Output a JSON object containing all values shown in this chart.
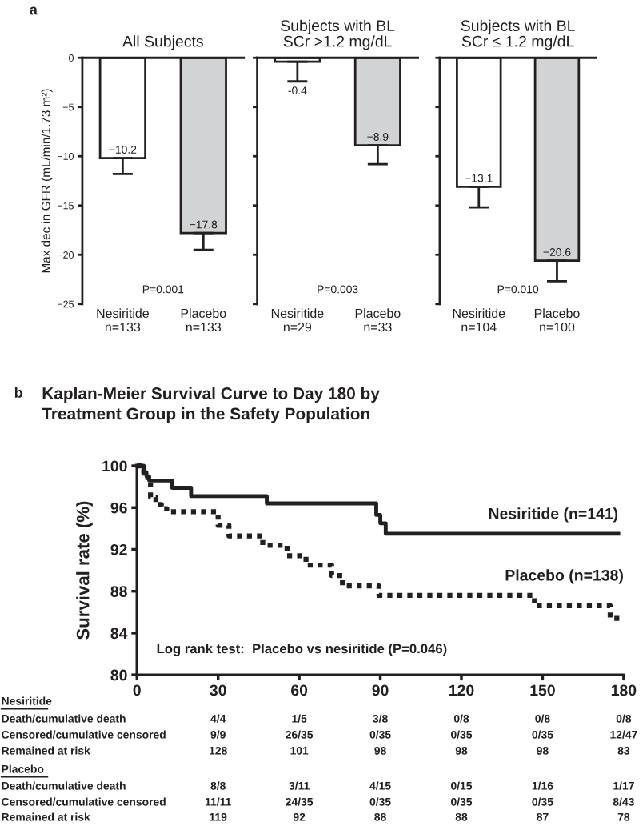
{
  "chart_data": [
    {
      "type": "bar",
      "title": "All Subjects",
      "ylabel": "Max dec in GFR (mL/min/1.73 m²)",
      "categories": [
        "Nesiritide\nn=133",
        "Placebo\nn=133"
      ],
      "values": [
        -10.2,
        -17.8
      ],
      "colors": [
        "#ffffff",
        "#d2d3d5"
      ],
      "errors": [
        [
          -11.8,
          -10.2
        ],
        [
          -19.5,
          -17.8
        ]
      ],
      "value_labels": [
        "−10.2",
        "−17.8"
      ],
      "ylim": [
        -25,
        0
      ],
      "yticks": [
        {
          "value": -25,
          "label": "−25"
        },
        {
          "value": -20,
          "label": "−20"
        },
        {
          "value": -15,
          "label": "−15"
        },
        {
          "value": -10,
          "label": "−10"
        },
        {
          "value": -5,
          "label": "−5"
        },
        0
      ],
      "annotations": [
        "P=0.001",
        "a"
      ]
    },
    {
      "type": "bar",
      "title": "Subjects with BL\nSCr >1.2 mg/dL",
      "categories": [
        "Nesiritide\nn=29",
        "Placebo\nn=33"
      ],
      "values": [
        -0.4,
        -8.9
      ],
      "colors": [
        "#ffffff",
        "#d2d3d5"
      ],
      "errors": [
        [
          -2.4,
          -0.4
        ],
        [
          -10.8,
          -8.9
        ]
      ],
      "value_labels": [
        "-0.4",
        "−8.9"
      ],
      "ylim": [
        -25,
        0
      ],
      "yticks": [
        {
          "value": -25,
          "label": null
        },
        {
          "value": -20,
          "label": null
        },
        {
          "value": -15,
          "label": null
        },
        {
          "value": -10,
          "label": null
        },
        {
          "value": -5,
          "label": null
        },
        {
          "value": 0,
          "label": null
        }
      ],
      "tick_labels": "x",
      "annotations": [
        "P=0.003"
      ]
    },
    {
      "type": "bar",
      "title": "Subjects with BL\nSCr ≤ 1.2 mg/dL",
      "categories": [
        "Nesiritide\nn=104",
        "Placebo\nn=100"
      ],
      "values": [
        -13.1,
        -20.6
      ],
      "colors": [
        "#ffffff",
        "#d2d3d5"
      ],
      "errors": [
        [
          -15.2,
          -13.1
        ],
        [
          -22.7,
          -20.6
        ]
      ],
      "value_labels": [
        "−13.1",
        "−20.6"
      ],
      "ylim": [
        -25,
        0
      ],
      "yticks": [
        {
          "value": -25,
          "label": null
        },
        {
          "value": -20,
          "label": null
        },
        {
          "value": -15,
          "label": null
        },
        {
          "value": -10,
          "label": null
        },
        {
          "value": -5,
          "label": null
        },
        {
          "value": 0,
          "label": null
        }
      ],
      "tick_labels": "x",
      "annotations": [
        "P=0.010"
      ]
    },
    {
      "type": "step",
      "title": "Kaplan-Meier Survival Curve to Day 180 by\nTreatment Group in the Safety Population",
      "ylabel": "Survival rate (%)",
      "xlim": [
        0,
        180
      ],
      "ylim": [
        80,
        100
      ],
      "xticks": [
        0,
        30,
        60,
        90,
        120,
        150,
        180
      ],
      "yticks": [
        80,
        84,
        88,
        92,
        96,
        100
      ],
      "series": [
        {
          "name": "Nesiritide (n=141)",
          "color": "#231f20",
          "line_style": "solid",
          "x": [
            0,
            2.5,
            3.5,
            4.5,
            13,
            20,
            48,
            88.5,
            90,
            92,
            178
          ],
          "values": [
            100,
            99.4,
            99.0,
            98.6,
            97.9,
            97.1,
            96.4,
            95.3,
            94.5,
            93.5,
            93.5
          ]
        },
        {
          "name": "Placebo (n=138)",
          "color": "#231f20",
          "line_style": "dotted",
          "x": [
            0,
            2.5,
            4,
            5,
            7,
            9,
            11,
            30,
            34,
            46.5,
            55.5,
            62.5,
            72,
            76,
            89.5,
            147,
            175,
            180
          ],
          "values": [
            100,
            99.3,
            98.5,
            97.0,
            96.3,
            95.9,
            95.6,
            94.3,
            93.3,
            92.4,
            91.4,
            90.5,
            89.5,
            88.5,
            87.6,
            86.6,
            85.4,
            85.4
          ]
        }
      ],
      "annotations": [
        "b",
        "Log rank test:  Placebo vs nesiritide (P=0.046)",
        "Nesiritide",
        "Death/cumulative death",
        "4/4",
        "1/5",
        "3/8",
        "0/8",
        "0/8",
        "0/8",
        "Censored/cumulative censored",
        "9/9",
        "26/35",
        "0/35",
        "0/35",
        "0/35",
        "12/47",
        "Remained at risk",
        "128",
        "101",
        "98",
        "98",
        "98",
        "83",
        "Placebo",
        "Death/cumulative death",
        "8/8",
        "3/11",
        "4/15",
        "0/15",
        "1/16",
        "1/17",
        "Censored/cumulative censored",
        "11/11",
        "24/35",
        "0/35",
        "0/35",
        "0/35",
        "8/43",
        "Remained at risk",
        "119",
        "92",
        "88",
        "88",
        "87",
        "78"
      ]
    }
  ]
}
